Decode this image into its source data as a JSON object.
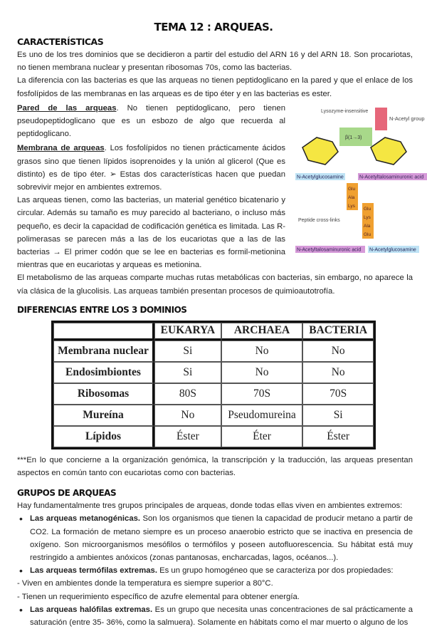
{
  "title": "TEMA 12 : ARQUEAS.",
  "s1": {
    "heading": "CARACTERÍSTICAS",
    "p1": "Es uno de los tres dominios que se decidieron a partir del estudio del ARN 16 y del ARN 18. Son procariotas, no tienen membrana nuclear y presentan ribosomas 70s, como las bacterias.",
    "p2": "La diferencia con las bacterias es que las arqueas no tienen peptidoglicano en la pared y que el enlace de los fosfolípidos de las membranas en las arqueas es de tipo éter y en las bacterias es ester.",
    "pared_label": "Pared de las arqueas",
    "pared_text": ". No tienen peptidoglicano, pero tienen pseudopeptidoglicano que es un esbozo de algo que recuerda al peptidoglicano.",
    "membrana_label": "Membrana de arqueas",
    "membrana_text": ". Los fosfolípidos no tienen prácticamente ácidos grasos sino que tienen lípidos isoprenoides y la unión al glicerol (Que es distinto) es de tipo éter. ➢ Estas dos características hacen que puedan sobrevivir mejor en ambientes extremos.",
    "p3": "Las arqueas tienen, como las bacterias, un material genético bicatenario y circular. Además su tamaño es muy parecido al bacteriano, o incluso más pequeño, es decir la capacidad de codificación genética es limitada. Las R-polimerasas se parecen más a las de los eucariotas que a las de las bacterias → El primer codón que se lee en bacterias es formil-metionina mientras que en eucariotas y arqueas es metionina.",
    "p4": "El metabolismo de las arqueas comparte muchas rutas metabólicas con bacterias, sin embargo, no aparece la vía clásica de la glucolisis. Las arqueas también presentan procesos de quimioautotrofía."
  },
  "diagram": {
    "lysozyme": "Lysozyme-insensitive",
    "bond": "β(1→3)",
    "n_acetyl_group": "N-Acetyl group",
    "nag": "N-Acetylglucosamine",
    "nat": "N-Acetyltalosaminuronic acid",
    "crosslinks": "Peptide cross-links",
    "pep1": [
      "Glu",
      "Ala",
      "Lys"
    ],
    "pep2": [
      "Glu",
      "Lys",
      "Ala",
      "Glu"
    ]
  },
  "s2": {
    "heading": "DIFERENCIAS ENTRE LOS 3 DOMINIOS",
    "table": {
      "headers": [
        "",
        "EUKARYA",
        "ARCHAEA",
        "BACTERIA"
      ],
      "rows": [
        [
          "Membrana nuclear",
          "Si",
          "No",
          "No"
        ],
        [
          "Endosimbiontes",
          "Si",
          "No",
          "No"
        ],
        [
          "Ribosomas",
          "80S",
          "70S",
          "70S"
        ],
        [
          "Mureína",
          "No",
          "Pseudomureina",
          "Si"
        ],
        [
          "Lípidos",
          "Éster",
          "Éter",
          "Éster"
        ]
      ]
    },
    "note": "***En lo que concierne a la organización genómica, la transcripción y la traducción, las arqueas presentan aspectos en común tanto con eucariotas como con bacterias."
  },
  "s3": {
    "heading": "GRUPOS DE ARQUEAS",
    "intro": "Hay fundamentalmente tres grupos principales de arqueas, donde todas ellas viven en ambientes extremos:",
    "b1_label": "Las arqueas metanogénicas.",
    "b1_text": " Son los organismos que tienen la capacidad de producir metano a partir de CO2. La formación de metano siempre es un proceso anaerobio estricto que se inactiva en presencia de oxígeno. Son microorganismos mesófilos o termófilos y poseen autofluorescencia. Su hábitat está muy restringido a ambientes anóxicos (zonas pantanosas, encharcadas, lagos, océanos...).",
    "b2_label": "Las arqueas termófilas extremas.",
    "b2_text": " Es un grupo homogéneo que se caracteriza por dos propiedades:",
    "d1": "- Viven en ambientes donde la temperatura es siempre superior a 80°C.",
    "d2": "- Tienen un requerimiento específico de azufre elemental para obtener energía.",
    "b3_label": "Las arqueas halófilas extremas.",
    "b3_text": " Es un grupo que necesita unas concentraciones de sal prácticamente a saturación (entre 35- 36%, como la salmuera). Solamente en hábitats como el mar muerto o alguno de los"
  }
}
